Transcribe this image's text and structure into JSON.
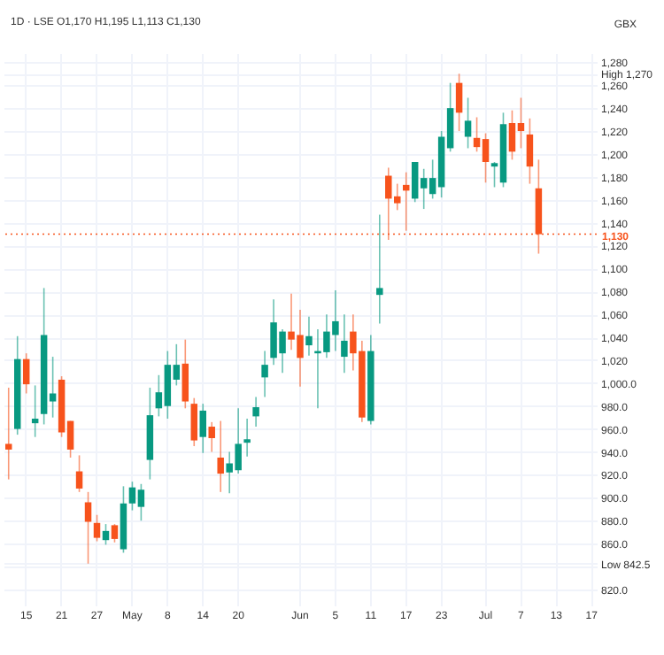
{
  "chart_data": {
    "type": "candlestick",
    "title": "1D · LSE  O1,170 H1,195 L1,113 C1,130",
    "ylabel": "GBX",
    "categories": [
      null,
      null,
      "15",
      null,
      null,
      null,
      "21",
      null,
      null,
      null,
      "27",
      null,
      null,
      null,
      "May",
      null,
      null,
      null,
      "8",
      null,
      null,
      null,
      "14",
      null,
      null,
      null,
      "20",
      null,
      null,
      null,
      null,
      null,
      null,
      "Jun",
      null,
      null,
      null,
      "5",
      null,
      null,
      null,
      "11",
      null,
      null,
      null,
      "17",
      null,
      null,
      null,
      "23",
      null,
      null,
      null,
      null,
      "Jul",
      null,
      null,
      null,
      "7",
      null,
      null,
      null,
      "13",
      null,
      null,
      null,
      "17"
    ],
    "ohlc": [
      [
        947,
        996,
        916,
        942
      ],
      [
        960,
        1041,
        955,
        1021
      ],
      [
        1021,
        1026,
        991,
        999
      ],
      [
        965,
        998,
        953,
        969
      ],
      [
        973,
        1083,
        964,
        1042
      ],
      [
        984,
        1023,
        970,
        991
      ],
      [
        1003,
        1006,
        953,
        957
      ],
      [
        967,
        967,
        935,
        942
      ],
      [
        923,
        937,
        905,
        908
      ],
      [
        896,
        905,
        842.5,
        879
      ],
      [
        878,
        885,
        862,
        865
      ],
      [
        863,
        877,
        859,
        871
      ],
      [
        876,
        877,
        861,
        864
      ],
      [
        855,
        910,
        852,
        895
      ],
      [
        895,
        914,
        889,
        909
      ],
      [
        892,
        912,
        880,
        907
      ],
      [
        933,
        996,
        916,
        972
      ],
      [
        978,
        1007,
        971,
        992
      ],
      [
        980,
        1028,
        969,
        1016
      ],
      [
        1003,
        1034,
        998,
        1016
      ],
      [
        1017,
        1038,
        978,
        984
      ],
      [
        982,
        987,
        945,
        950
      ],
      [
        953,
        982,
        939,
        976
      ],
      [
        962,
        966,
        940,
        952
      ],
      [
        935,
        967,
        905,
        921
      ],
      [
        922,
        940,
        904,
        930
      ],
      [
        924,
        978,
        921,
        947
      ],
      [
        948,
        969,
        936,
        951
      ],
      [
        971,
        988,
        962,
        979
      ],
      [
        1005,
        1028,
        988,
        1016
      ],
      [
        1022,
        1073,
        1016,
        1053
      ],
      [
        1026,
        1047,
        1009,
        1045
      ],
      [
        1045,
        1078,
        1029,
        1038
      ],
      [
        1042,
        1064,
        997,
        1022
      ],
      [
        1033,
        1058,
        1024,
        1041
      ],
      [
        1026,
        1047,
        978,
        1028
      ],
      [
        1027,
        1060,
        1022,
        1045
      ],
      [
        1042,
        1081,
        1028,
        1054
      ],
      [
        1023,
        1060,
        1009,
        1037
      ],
      [
        1045,
        1060,
        1011,
        1026
      ],
      [
        1028,
        1037,
        966,
        970
      ],
      [
        967,
        1042,
        964,
        1028
      ],
      [
        1077,
        1147,
        1052,
        1083
      ],
      [
        1181,
        1188,
        1125,
        1161
      ],
      [
        1163,
        1174,
        1151,
        1157
      ],
      [
        1173,
        1184,
        1133,
        1168
      ],
      [
        1161,
        1193,
        1158,
        1193
      ],
      [
        1170,
        1187,
        1152,
        1179
      ],
      [
        1165,
        1195,
        1161,
        1179
      ],
      [
        1171,
        1220,
        1162,
        1215
      ],
      [
        1205,
        1262,
        1202,
        1240
      ],
      [
        1262,
        1270,
        1220,
        1236
      ],
      [
        1215,
        1249,
        1205,
        1229
      ],
      [
        1214,
        1232,
        1202,
        1206
      ],
      [
        1213,
        1218,
        1175,
        1193
      ],
      [
        1189,
        1193,
        1171,
        1192
      ],
      [
        1175,
        1236,
        1171,
        1226
      ],
      [
        1227,
        1238,
        1195,
        1202
      ],
      [
        1227,
        1249,
        1205,
        1220
      ],
      [
        1217,
        1231,
        1174,
        1189
      ],
      [
        1170,
        1195,
        1113,
        1130
      ],
      null,
      null,
      null,
      null,
      null,
      null
    ],
    "colors": [
      "#f7531c",
      "#089981",
      "#f7531c",
      "#089981",
      "#089981",
      "#089981",
      "#f7531c",
      "#f7531c",
      "#f7531c",
      "#f7531c",
      "#f7531c",
      "#089981",
      "#f7531c",
      "#089981",
      "#089981",
      "#089981",
      "#089981",
      "#089981",
      "#089981",
      "#089981",
      "#f7531c",
      "#f7531c",
      "#089981",
      "#f7531c",
      "#f7531c",
      "#089981",
      "#089981",
      "#089981",
      "#089981",
      "#089981",
      "#089981",
      "#089981",
      "#f7531c",
      "#f7531c",
      "#089981",
      "#089981",
      "#089981",
      "#089981",
      "#089981",
      "#f7531c",
      "#f7531c",
      "#089981",
      "#089981",
      "#f7531c",
      "#f7531c",
      "#f7531c",
      "#089981",
      "#089981",
      "#089981",
      "#089981",
      "#089981",
      "#f7531c",
      "#089981",
      "#f7531c",
      "#f7531c",
      "#089981",
      "#089981",
      "#f7531c",
      "#f7531c",
      "#f7531c",
      "#f7531c",
      null,
      null,
      null,
      null,
      null,
      null
    ],
    "ylim": [
      806,
      1288
    ],
    "yticks": [
      {
        "value": 820,
        "label": "820.0"
      },
      {
        "value": 840,
        "label": null
      },
      {
        "value": 842.5,
        "label": "Low 842.5"
      },
      {
        "value": 860,
        "label": "860.0"
      },
      {
        "value": 880,
        "label": "880.0"
      },
      {
        "value": 900,
        "label": "900.0"
      },
      {
        "value": 920,
        "label": "920.0"
      },
      {
        "value": 940,
        "label": "940.0"
      },
      {
        "value": 960,
        "label": "960.0"
      },
      {
        "value": 980,
        "label": "980.0"
      },
      {
        "value": 1000,
        "label": "1,000.0"
      },
      {
        "value": 1020,
        "label": "1,020"
      },
      {
        "value": 1040,
        "label": "1,040"
      },
      {
        "value": 1060,
        "label": "1,060"
      },
      {
        "value": 1080,
        "label": "1,080"
      },
      {
        "value": 1100,
        "label": "1,100"
      },
      {
        "value": 1120,
        "label": "1,120"
      },
      {
        "value": 1140,
        "label": "1,140"
      },
      {
        "value": 1160,
        "label": "1,160"
      },
      {
        "value": 1180,
        "label": "1,180"
      },
      {
        "value": 1200,
        "label": "1,200"
      },
      {
        "value": 1220,
        "label": "1,220"
      },
      {
        "value": 1240,
        "label": "1,240"
      },
      {
        "value": 1260,
        "label": "1,260"
      },
      {
        "value": 1270,
        "label": "High 1,270"
      },
      {
        "value": 1280,
        "label": "1,280"
      }
    ],
    "ref_lines": [
      {
        "axis": "y",
        "value": 1130,
        "label": "1,130",
        "color": "#f7531c",
        "line_style": "dotted"
      }
    ],
    "grid": true
  }
}
